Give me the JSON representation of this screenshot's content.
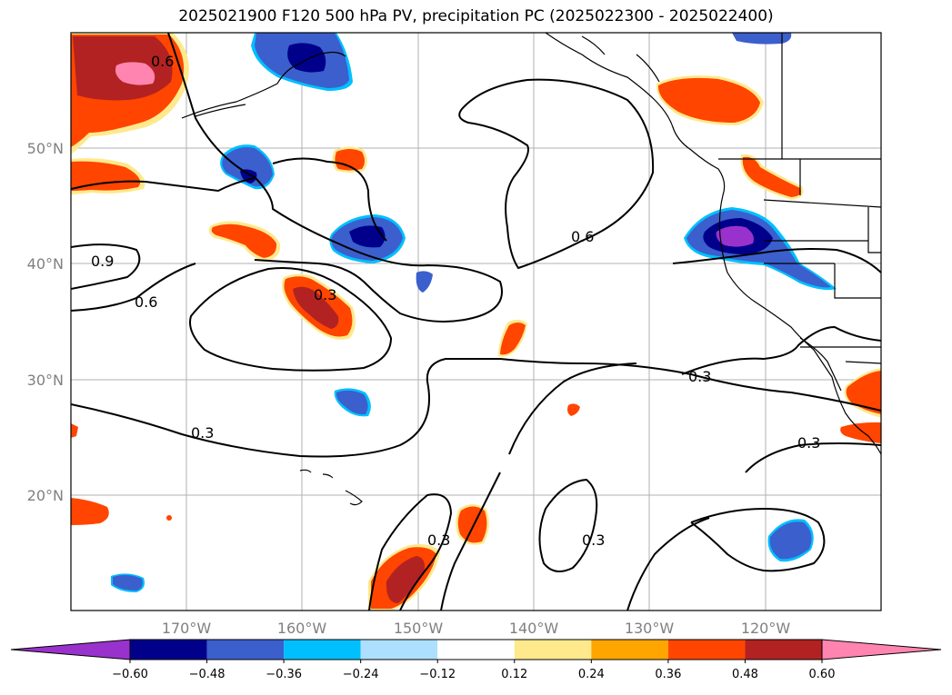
{
  "title": "2025021900 F120 500 hPa PV, precipitation PC (2025022300 - 2025022400)",
  "lon_labels": [
    "170°W",
    "160°W",
    "150°W",
    "140°W",
    "130°W",
    "120°W"
  ],
  "lat_labels": [
    "50°N",
    "40°N",
    "30°N",
    "20°N"
  ],
  "contour_labels": [
    "0.6",
    "0.9",
    "0.6",
    "0.3",
    "0.6",
    "0.3",
    "0.3",
    "0.3",
    "0.3",
    "0.3"
  ],
  "colorbar": {
    "colors": [
      "#9932cc",
      "#00008b",
      "#3b5fcd",
      "#00bfff",
      "#addfff",
      "#ffffff",
      "#fee98c",
      "#ffa500",
      "#ff4500",
      "#b22222",
      "#ff85b0"
    ],
    "ticks": [
      "−0.60",
      "−0.48",
      "−0.36",
      "−0.24",
      "−0.12",
      "0.12",
      "0.24",
      "0.36",
      "0.48",
      "0.60"
    ]
  },
  "colors": {
    "pos_low": "#fee98c",
    "pos_mid": "#ffa500",
    "pos_high": "#ff4500",
    "pos_vhigh": "#b22222",
    "pos_max": "#ff85b0",
    "neg_low": "#addfff",
    "neg_mid": "#00bfff",
    "neg_high": "#3b5fcd",
    "neg_vhigh": "#00008b",
    "neg_max": "#9932cc"
  }
}
